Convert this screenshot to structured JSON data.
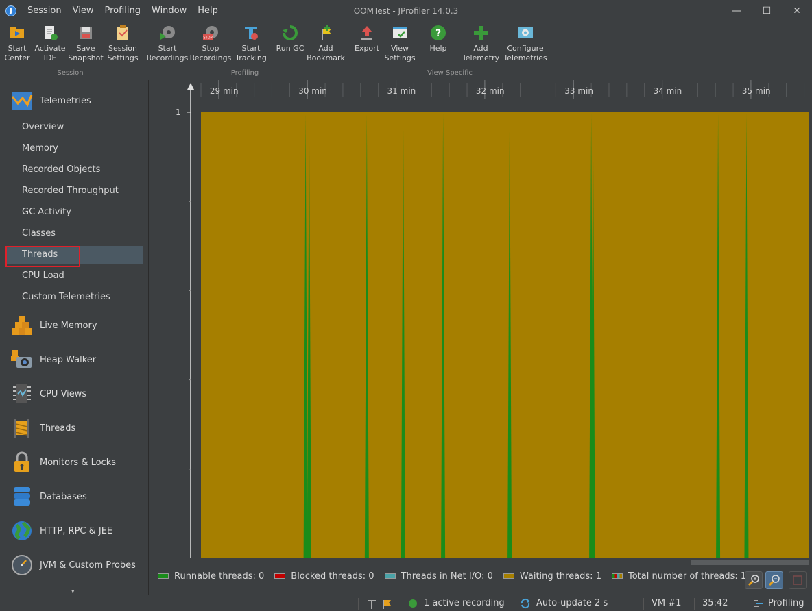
{
  "window": {
    "title": "OOMTest - JProfiler 14.0.3",
    "menu": [
      "Session",
      "View",
      "Profiling",
      "Window",
      "Help"
    ],
    "controls": {
      "minimize": "—",
      "maximize": "☐",
      "close": "✕"
    }
  },
  "toolbar": {
    "groups": [
      {
        "name": "Session",
        "buttons": [
          "Start\nCenter",
          "Activate\nIDE",
          "Save\nSnapshot",
          "Session\nSettings"
        ]
      },
      {
        "name": "Profiling",
        "buttons": [
          "Start\nRecordings",
          "Stop\nRecordings",
          "Start\nTracking",
          "Run GC",
          "Add\nBookmark"
        ]
      },
      {
        "name": "View Specific",
        "buttons": [
          "Export",
          "View\nSettings",
          "Help",
          "Add\nTelemetry",
          "Configure\nTelemetries"
        ]
      }
    ],
    "stop_badge": "STOP"
  },
  "sidebar": {
    "telemetries_label": "Telemetries",
    "telemetry_items": [
      "Overview",
      "Memory",
      "Recorded Objects",
      "Recorded Throughput",
      "GC Activity",
      "Classes",
      "Threads",
      "CPU Load",
      "Custom Telemetries"
    ],
    "selected_item": "Threads",
    "sections": [
      "Live Memory",
      "Heap Walker",
      "CPU Views",
      "Threads",
      "Monitors & Locks",
      "Databases",
      "HTTP, RPC & JEE",
      "JVM & Custom Probes"
    ],
    "more_arrow": "▾"
  },
  "chart_data": {
    "type": "area",
    "title": "",
    "xlabel": "",
    "ylabel": "",
    "x_unit": "min",
    "x_ticks": [
      "29 min",
      "30 min",
      "31 min",
      "32 min",
      "33 min",
      "34 min",
      "35 min"
    ],
    "xlim": [
      28.8,
      35.65
    ],
    "ylim": [
      0,
      1
    ],
    "y_ticks": [
      "1"
    ],
    "series": [
      {
        "name": "Runnable threads",
        "color": "#1a8c1a",
        "values": []
      },
      {
        "name": "Blocked threads",
        "color": "#c00000",
        "values": []
      },
      {
        "name": "Threads in Net I/O",
        "color": "#4aa3a8",
        "values": []
      },
      {
        "name": "Waiting threads",
        "color": "#a67f00",
        "values": [
          1
        ]
      }
    ],
    "runnable_spikes_min": [
      29.98,
      30.02,
      30.67,
      31.08,
      31.53,
      32.28,
      33.2,
      33.22,
      34.63,
      34.95
    ],
    "legend": {
      "placement": "bottom",
      "entries": [
        {
          "text": "Runnable threads: 0",
          "color": "#1a8c1a"
        },
        {
          "text": "Blocked threads: 0",
          "color": "#c00000"
        },
        {
          "text": "Threads in Net I/O: 0",
          "color": "#4aa3a8"
        },
        {
          "text": "Waiting threads: 1",
          "color": "#a67f00"
        },
        {
          "text": "Total number of threads: 1",
          "color": "#a67f00"
        }
      ]
    }
  },
  "statusbar": {
    "recording": "1 active recording",
    "autoupdate": "Auto-update 2 s",
    "vm": "VM #1",
    "time": "35:42",
    "mode": "Profiling"
  }
}
